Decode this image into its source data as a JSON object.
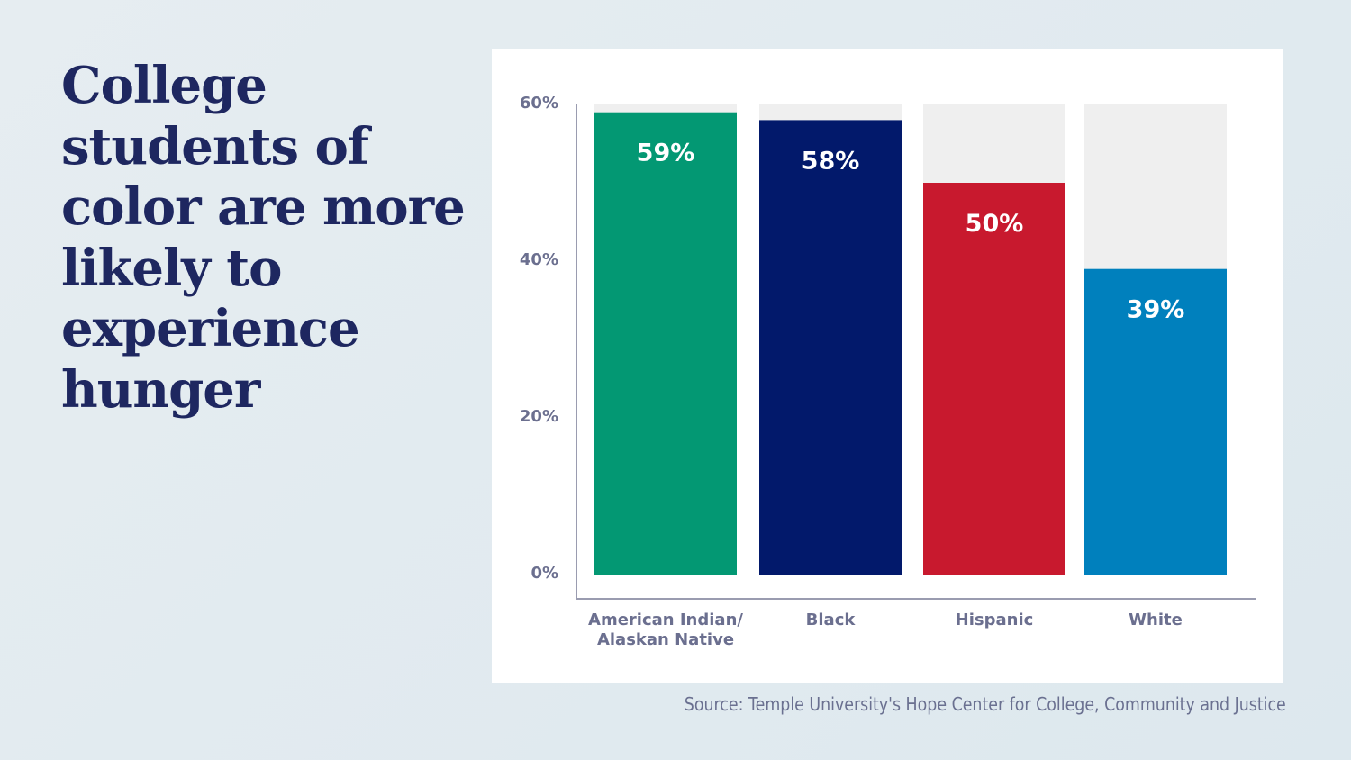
{
  "headline": "College students of color are more likely to experience hunger",
  "source": "Source: Temple University's Hope Center for College, Community and Justice",
  "chart_data": {
    "type": "bar",
    "title": "",
    "xlabel": "",
    "ylabel": "",
    "ylim": [
      0,
      60
    ],
    "yticks": [
      "0%",
      "20%",
      "40%",
      "60%"
    ],
    "ytick_values": [
      0,
      20,
      40,
      60
    ],
    "grid": false,
    "background_bars": true,
    "categories": [
      [
        "American Indian/",
        "Alaskan Native"
      ],
      [
        "Black"
      ],
      [
        "Hispanic"
      ],
      [
        "White"
      ]
    ],
    "values": [
      59,
      58,
      50,
      39
    ],
    "data_labels": [
      "59%",
      "58%",
      "50%",
      "39%"
    ],
    "colors": [
      "#039873",
      "#02196b",
      "#c8192e",
      "#0080bd"
    ],
    "background_bar_color": "#efefef"
  }
}
